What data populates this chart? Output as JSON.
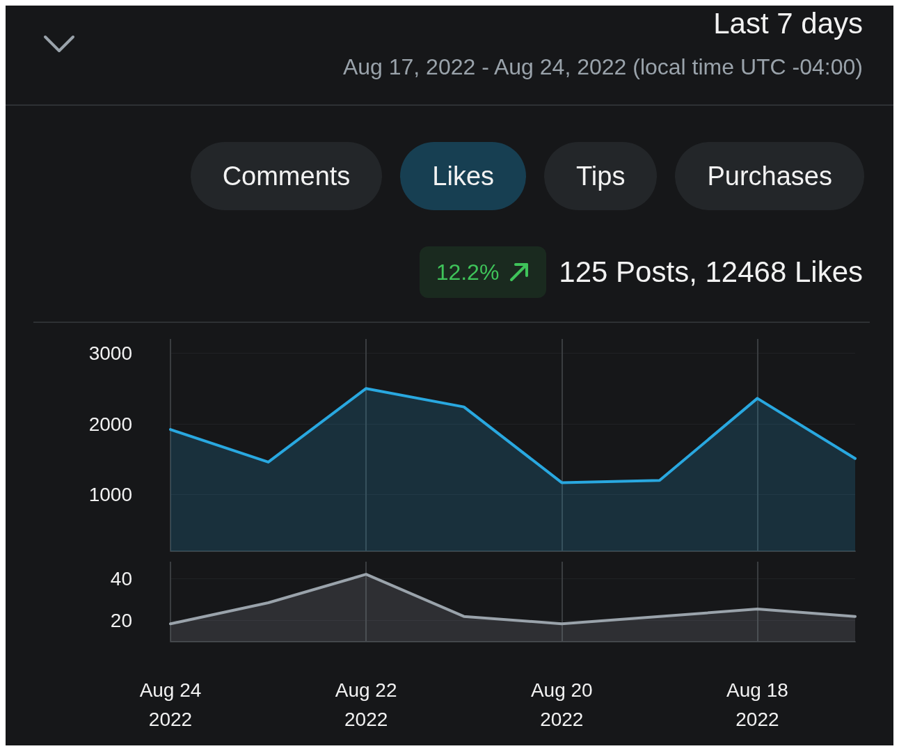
{
  "chart_data": [
    {
      "type": "area",
      "title": "Last 7 days",
      "subtitle": "Aug 17, 2022 - Aug 24, 2022 (local time UTC -04:00)",
      "annotations": [
        "Purchases",
        "Tips",
        "Likes",
        "Comments",
        "125 Posts, 12468 Likes",
        "12.2%"
      ],
      "x": [
        "2022-08-24",
        "2022-08-23",
        "2022-08-22",
        "2022-08-21",
        "2022-08-20",
        "2022-08-19",
        "2022-08-18",
        "2022-08-17"
      ],
      "series": [
        {
          "color": "#29a8e0",
          "values": [
            1920,
            1460,
            2500,
            2240,
            1170,
            1200,
            2360,
            1510
          ]
        }
      ],
      "xlim": [
        "2022-08-24",
        "2022-08-17"
      ],
      "xticks": [
        {
          "value": "2022-08-24",
          "label": null
        },
        {
          "value": "2022-08-22",
          "label": null
        },
        {
          "value": "2022-08-20",
          "label": null
        },
        {
          "value": "2022-08-18",
          "label": null
        }
      ],
      "ylim": [
        200,
        3200
      ],
      "yticks": [
        1000,
        2000,
        3000
      ],
      "grid": true,
      "tick_labels": "y",
      "marker": "none"
    },
    {
      "type": "area",
      "x": [
        "2022-08-24",
        "2022-08-23",
        "2022-08-22",
        "2022-08-21",
        "2022-08-20",
        "2022-08-19",
        "2022-08-18",
        "2022-08-17"
      ],
      "series": [
        {
          "color": "#9aa3ab",
          "values": [
            18.5,
            28.5,
            42,
            22,
            18.5,
            22,
            25.5,
            22
          ]
        }
      ],
      "xlim": [
        "2022-08-24",
        "2022-08-17"
      ],
      "xticks": [
        {
          "value": "2022-08-24",
          "label": "Aug 24\n2022"
        },
        {
          "value": "2022-08-22",
          "label": "Aug 22\n2022"
        },
        {
          "value": "2022-08-20",
          "label": "Aug 20\n2022"
        },
        {
          "value": "2022-08-18",
          "label": "Aug 18\n2022"
        }
      ],
      "ylim": [
        10,
        48
      ],
      "yticks": [
        20,
        40
      ],
      "grid": true,
      "marker": "none"
    }
  ]
}
